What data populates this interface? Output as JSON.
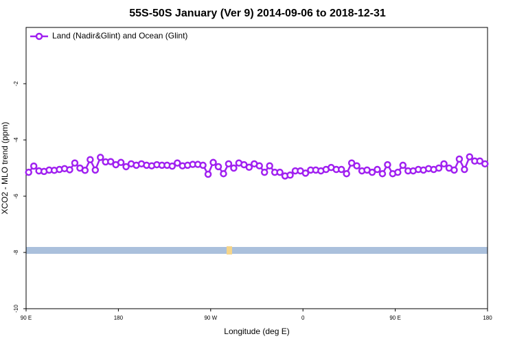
{
  "chart_data": {
    "type": "line",
    "title": "55S-50S January (Ver 9)   2014-09-06 to 2018-12-31",
    "x_label": "Longitude (deg E)",
    "y_label": "XCO2 - MLO trend (ppm)",
    "xlim": [
      90,
      540
    ],
    "ylim": [
      -10,
      0
    ],
    "xticks": [
      {
        "value": 90,
        "label": "90 E"
      },
      180,
      {
        "value": 270,
        "label": "90 W"
      },
      {
        "value": 360,
        "label": "0"
      },
      {
        "value": 450,
        "label": "90 E"
      },
      {
        "value": 540,
        "label": "180"
      }
    ],
    "yticks": [
      -10,
      -8,
      -6,
      -4,
      -2
    ],
    "legend_position": "top-left",
    "x": [
      92.5,
      97.5,
      102.5,
      107.5,
      112.5,
      117.5,
      122.5,
      127.5,
      132.5,
      137.5,
      142.5,
      147.5,
      152.5,
      157.5,
      162.5,
      167.5,
      172.5,
      177.5,
      182.5,
      187.5,
      192.5,
      197.5,
      202.5,
      207.5,
      212.5,
      217.5,
      222.5,
      227.5,
      232.5,
      237.5,
      242.5,
      247.5,
      252.5,
      257.5,
      262.5,
      267.5,
      272.5,
      277.5,
      282.5,
      287.5,
      292.5,
      297.5,
      302.5,
      307.5,
      312.5,
      317.5,
      322.5,
      327.5,
      332.5,
      337.5,
      342.5,
      347.5,
      352.5,
      357.5,
      362.5,
      367.5,
      372.5,
      377.5,
      382.5,
      387.5,
      392.5,
      397.5,
      402.5,
      407.5,
      412.5,
      417.5,
      422.5,
      427.5,
      432.5,
      437.5,
      442.5,
      447.5,
      452.5,
      457.5,
      462.5,
      467.5,
      472.5,
      477.5,
      482.5,
      487.5,
      492.5,
      497.5,
      502.5,
      507.5,
      512.5,
      517.5,
      522.5,
      527.5,
      532.5,
      537.5
    ],
    "series": [
      {
        "name": "Land (Nadir&Glint) and Ocean (Glint)",
        "color": "#a020f0",
        "values": [
          -5.15,
          -4.93,
          -5.1,
          -5.12,
          -5.07,
          -5.08,
          -5.05,
          -5.02,
          -5.06,
          -4.82,
          -5.0,
          -5.08,
          -4.7,
          -5.07,
          -4.62,
          -4.78,
          -4.77,
          -4.88,
          -4.8,
          -4.95,
          -4.85,
          -4.9,
          -4.85,
          -4.9,
          -4.92,
          -4.88,
          -4.9,
          -4.9,
          -4.93,
          -4.82,
          -4.92,
          -4.9,
          -4.87,
          -4.87,
          -4.9,
          -5.22,
          -4.8,
          -4.95,
          -5.2,
          -4.85,
          -5.0,
          -4.82,
          -4.88,
          -4.97,
          -4.85,
          -4.92,
          -5.15,
          -4.92,
          -5.15,
          -5.15,
          -5.28,
          -5.25,
          -5.1,
          -5.1,
          -5.18,
          -5.07,
          -5.07,
          -5.1,
          -5.05,
          -4.98,
          -5.05,
          -5.05,
          -5.2,
          -4.82,
          -4.92,
          -5.1,
          -5.07,
          -5.15,
          -5.05,
          -5.2,
          -4.88,
          -5.2,
          -5.15,
          -4.9,
          -5.1,
          -5.1,
          -5.05,
          -5.07,
          -5.02,
          -5.05,
          -5.0,
          -4.85,
          -5.0,
          -5.07,
          -4.68,
          -5.05,
          -4.6,
          -4.75,
          -4.75,
          -4.85
        ]
      }
    ]
  }
}
